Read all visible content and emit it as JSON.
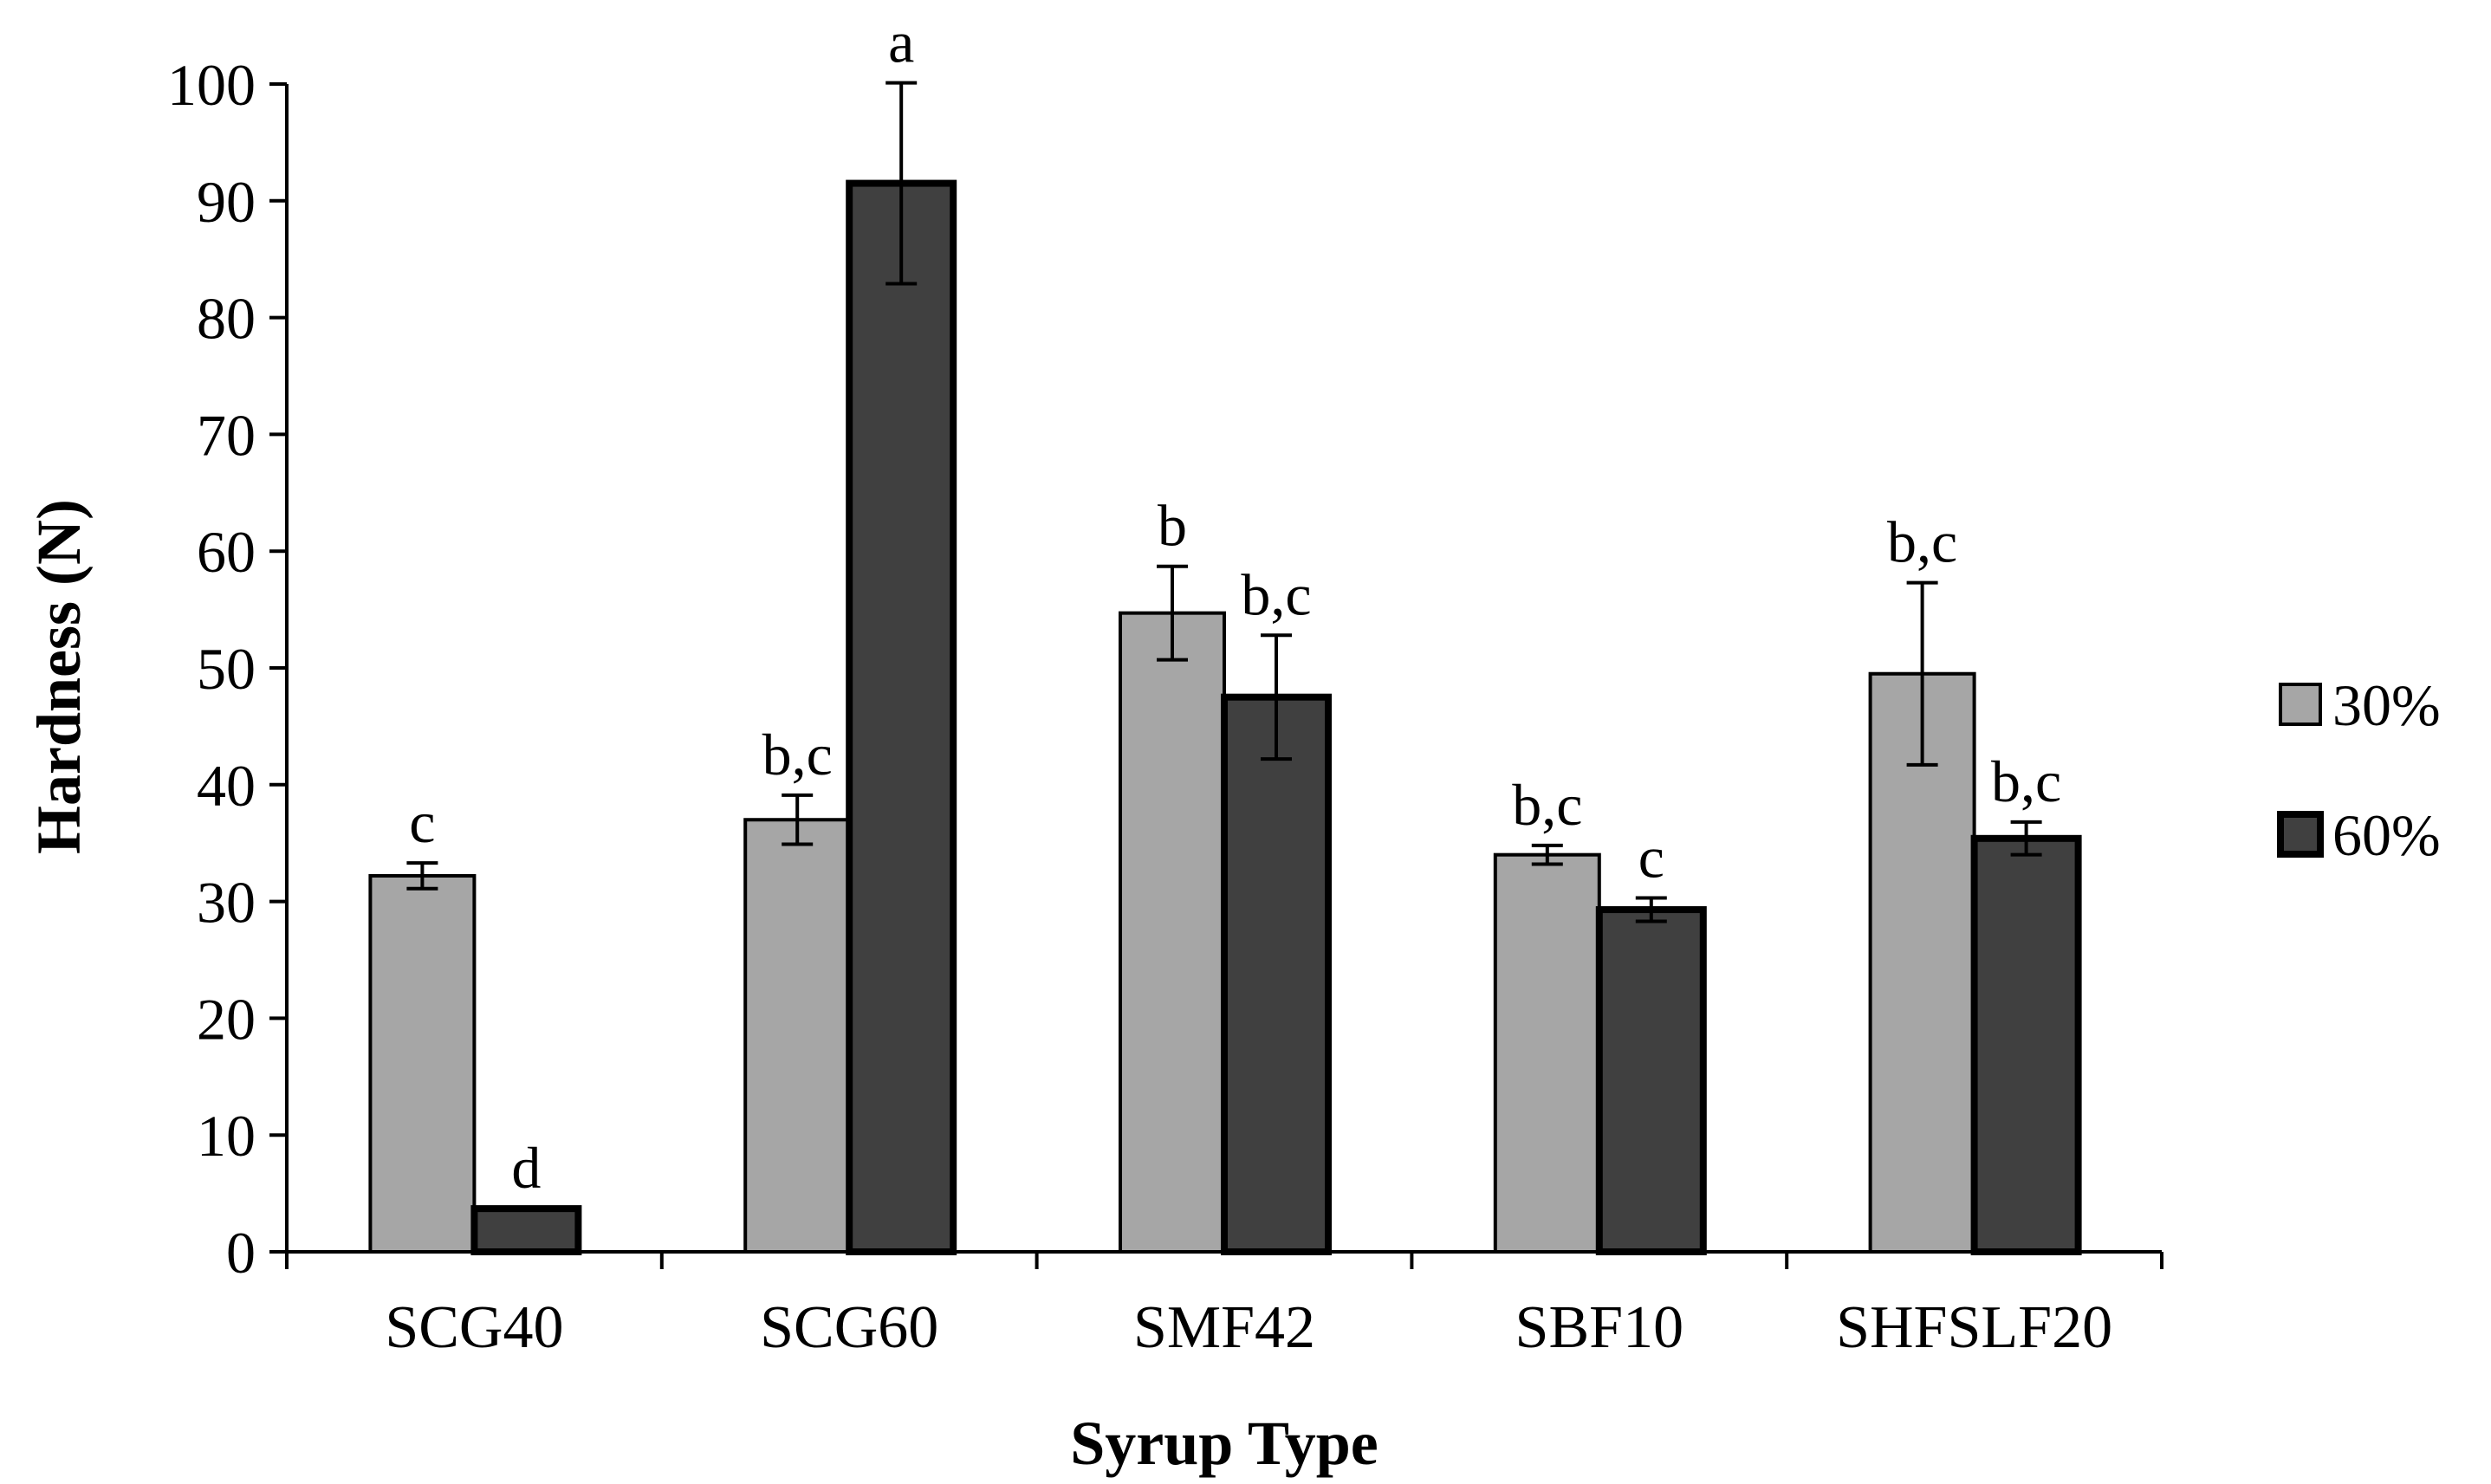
{
  "chart_data": {
    "type": "bar",
    "title": "",
    "xlabel": "Syrup Type",
    "ylabel": "Hardness (N)",
    "ylim": [
      0,
      100
    ],
    "yticks": [
      0,
      10,
      20,
      30,
      40,
      50,
      60,
      70,
      80,
      90,
      100
    ],
    "grid": false,
    "legend_position": "right",
    "categories": [
      "SCG40",
      "SCG60",
      "SMF42",
      "SBF10",
      "SHFSLF20"
    ],
    "series": [
      {
        "name": "30%",
        "color": "#a6a6a6",
        "values": [
          32.2,
          37.0,
          54.7,
          34.0,
          49.5
        ],
        "errors": [
          1.1,
          2.1,
          4.0,
          0.8,
          7.8
        ],
        "significance": [
          "c",
          "b,c",
          "b",
          "b,c",
          "b,c"
        ]
      },
      {
        "name": "60%",
        "color": "#404040",
        "values": [
          3.7,
          91.5,
          47.5,
          29.3,
          35.4
        ],
        "errors": [
          0.0,
          8.6,
          5.3,
          1.0,
          1.4
        ],
        "significance": [
          "d",
          "a",
          "b,c",
          "c",
          "b,c"
        ]
      }
    ]
  }
}
